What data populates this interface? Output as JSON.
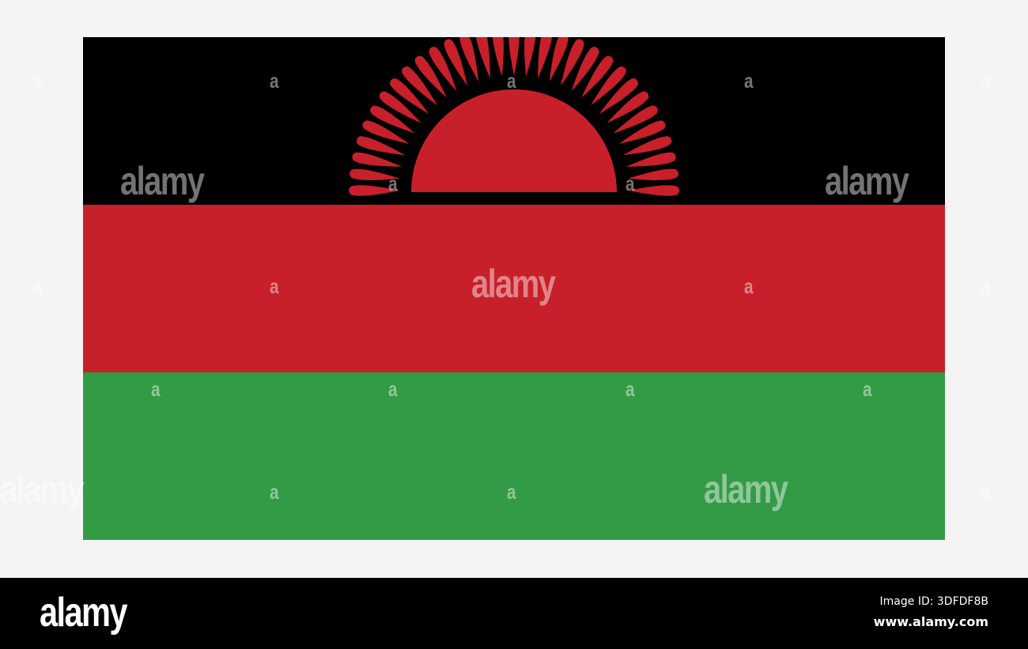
{
  "flag": {
    "colors": {
      "top": "#000000",
      "middle": "#c8202a",
      "bottom": "#339a46",
      "sun": "#c8202a"
    },
    "sun_rays": 31
  },
  "watermark": {
    "big_text": "alamy",
    "small_text": "a"
  },
  "footer": {
    "logo": "alamy",
    "image_id": "Image ID: 3DFDF8B",
    "site": "www.alamy.com"
  }
}
